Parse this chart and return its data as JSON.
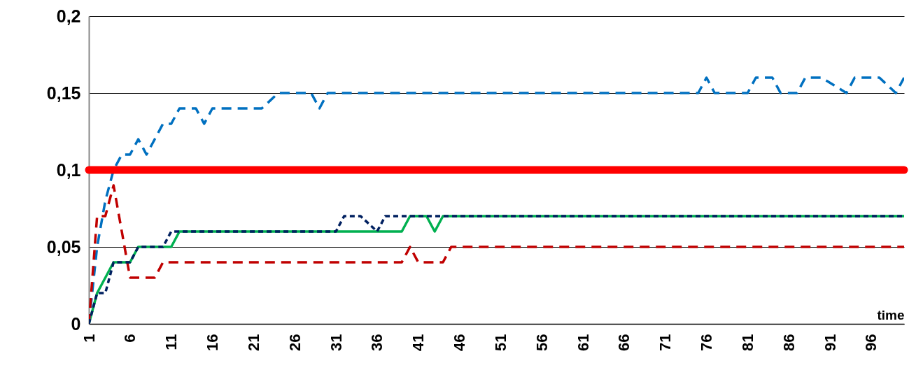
{
  "chart_data": {
    "type": "line",
    "xlabel": "time",
    "xlim": [
      1,
      100
    ],
    "xticks": [
      1,
      6,
      11,
      16,
      21,
      26,
      31,
      36,
      41,
      46,
      51,
      56,
      61,
      66,
      71,
      76,
      81,
      86,
      91,
      96
    ],
    "ylim": [
      0,
      0.2
    ],
    "yticks": [
      0,
      {
        "value": 0.05,
        "label": "0,05"
      },
      {
        "value": 0.1,
        "label": "0,1"
      },
      {
        "value": 0.15,
        "label": "0,15"
      },
      {
        "value": 0.2,
        "label": "0,2"
      }
    ],
    "grid": "y",
    "legend": false,
    "marker": "none",
    "ref_lines": [
      {
        "axis": "y",
        "value": 0.1,
        "color": "#ff0000",
        "line_style": "solid"
      }
    ],
    "series": [
      {
        "color": "#0070c0",
        "line_style": "dashed",
        "x": [
          1,
          2,
          3,
          4,
          5,
          6,
          7,
          8,
          9,
          10,
          11,
          12,
          14,
          15,
          16,
          22,
          24,
          28,
          29,
          30,
          75,
          76,
          77,
          81,
          82,
          84,
          85,
          87,
          88,
          90,
          93,
          94,
          97,
          99,
          100
        ],
        "values": [
          0,
          0.05,
          0.08,
          0.1,
          0.11,
          0.11,
          0.12,
          0.11,
          0.12,
          0.13,
          0.13,
          0.14,
          0.14,
          0.13,
          0.14,
          0.14,
          0.15,
          0.15,
          0.14,
          0.15,
          0.15,
          0.16,
          0.15,
          0.15,
          0.16,
          0.16,
          0.15,
          0.15,
          0.16,
          0.16,
          0.15,
          0.16,
          0.16,
          0.15,
          0.16
        ]
      },
      {
        "color": "#c00000",
        "line_style": "dashed",
        "x": [
          1,
          2,
          3,
          4,
          6,
          9,
          10,
          39,
          40,
          41,
          44,
          45,
          100
        ],
        "values": [
          0,
          0.07,
          0.07,
          0.09,
          0.03,
          0.03,
          0.04,
          0.04,
          0.05,
          0.04,
          0.04,
          0.05,
          0.05
        ]
      },
      {
        "color": "#00b050",
        "line_style": "solid",
        "x": [
          1,
          2,
          4,
          6,
          7,
          11,
          12,
          39,
          40,
          42,
          43,
          44,
          100
        ],
        "values": [
          0,
          0.02,
          0.04,
          0.04,
          0.05,
          0.05,
          0.06,
          0.06,
          0.07,
          0.07,
          0.06,
          0.07,
          0.07
        ]
      },
      {
        "color": "#002060",
        "line_style": "dotted",
        "x": [
          1,
          2,
          3,
          4,
          6,
          7,
          10,
          11,
          31,
          32,
          34,
          36,
          37,
          100
        ],
        "values": [
          0,
          0.02,
          0.02,
          0.04,
          0.04,
          0.05,
          0.05,
          0.06,
          0.06,
          0.07,
          0.07,
          0.06,
          0.07,
          0.07
        ]
      }
    ]
  }
}
